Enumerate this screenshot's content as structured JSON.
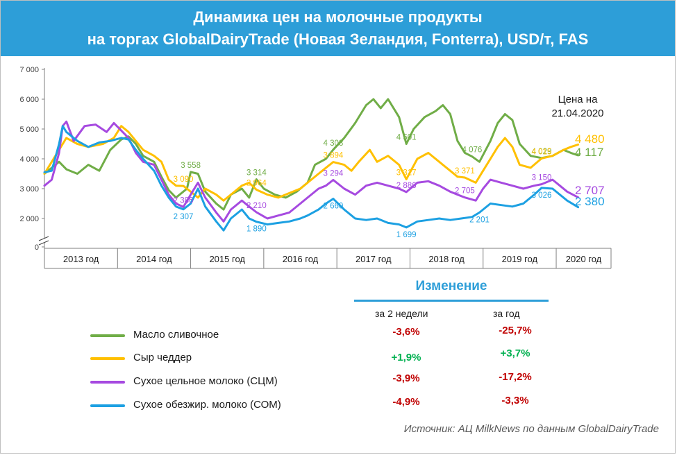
{
  "header": {
    "title_line1": "Динамика цен на молочные продукты",
    "title_line2": "на торгах GlobalDairyTrade (Новая Зеландия, Fonterra), USD/т, FAS"
  },
  "chart_data": {
    "type": "line",
    "ylim": [
      0,
      7000
    ],
    "yticks": [
      "0",
      "2 000",
      "3 000",
      "4 000",
      "5 000",
      "6 000",
      "7 000"
    ],
    "ytick_values": [
      0,
      2000,
      3000,
      4000,
      5000,
      6000,
      7000
    ],
    "axis_break": true,
    "x_range": [
      2013.0,
      2020.75
    ],
    "years": [
      "2013 год",
      "2014 год",
      "2015 год",
      "2016 год",
      "2017 год",
      "2018 год",
      "2019 год",
      "2020 год"
    ],
    "price_note": "Цена на\n21.04.2020",
    "series": [
      {
        "name": "Масло сливочное",
        "color": "#70ad47",
        "points": [
          [
            2013.0,
            3500
          ],
          [
            2013.1,
            3700
          ],
          [
            2013.2,
            3900
          ],
          [
            2013.3,
            3650
          ],
          [
            2013.45,
            3500
          ],
          [
            2013.6,
            3800
          ],
          [
            2013.75,
            3600
          ],
          [
            2013.9,
            4300
          ],
          [
            2014.05,
            4650
          ],
          [
            2014.15,
            4750
          ],
          [
            2014.25,
            4500
          ],
          [
            2014.35,
            4100
          ],
          [
            2014.5,
            3900
          ],
          [
            2014.6,
            3400
          ],
          [
            2014.7,
            2950
          ],
          [
            2014.8,
            2700
          ],
          [
            2014.95,
            3000
          ],
          [
            2015.0,
            3558
          ],
          [
            2015.1,
            3500
          ],
          [
            2015.2,
            2900
          ],
          [
            2015.35,
            2500
          ],
          [
            2015.45,
            2300
          ],
          [
            2015.55,
            2800
          ],
          [
            2015.7,
            3000
          ],
          [
            2015.8,
            2700
          ],
          [
            2015.9,
            3314
          ],
          [
            2016.0,
            3000
          ],
          [
            2016.15,
            2800
          ],
          [
            2016.3,
            2700
          ],
          [
            2016.45,
            2900
          ],
          [
            2016.6,
            3200
          ],
          [
            2016.7,
            3800
          ],
          [
            2016.85,
            4000
          ],
          [
            2016.95,
            4308
          ],
          [
            2017.1,
            4700
          ],
          [
            2017.25,
            5200
          ],
          [
            2017.4,
            5800
          ],
          [
            2017.5,
            6000
          ],
          [
            2017.6,
            5700
          ],
          [
            2017.7,
            6000
          ],
          [
            2017.85,
            5400
          ],
          [
            2017.95,
            4501
          ],
          [
            2018.05,
            5000
          ],
          [
            2018.2,
            5400
          ],
          [
            2018.35,
            5600
          ],
          [
            2018.45,
            5800
          ],
          [
            2018.55,
            5500
          ],
          [
            2018.65,
            4600
          ],
          [
            2018.75,
            4200
          ],
          [
            2018.85,
            4076
          ],
          [
            2018.95,
            3900
          ],
          [
            2019.1,
            4600
          ],
          [
            2019.2,
            5200
          ],
          [
            2019.3,
            5500
          ],
          [
            2019.4,
            5300
          ],
          [
            2019.5,
            4500
          ],
          [
            2019.65,
            4100
          ],
          [
            2019.8,
            4029
          ],
          [
            2019.95,
            4100
          ],
          [
            2020.1,
            4300
          ],
          [
            2020.2,
            4200
          ],
          [
            2020.3,
            4117
          ]
        ],
        "labels": [
          [
            "3 558",
            2015.0,
            3558
          ],
          [
            "3 314",
            2015.9,
            3314
          ],
          [
            "4 308",
            2016.95,
            4308
          ],
          [
            "4 501",
            2017.95,
            4501
          ],
          [
            "4 076",
            2018.85,
            4076
          ],
          [
            "4 029",
            2019.8,
            4029
          ]
        ],
        "end_value": "4 117",
        "change_2w": "-3,6%",
        "change_yr": "-25,7%"
      },
      {
        "name": "Сыр чеддер",
        "color": "#ffc000",
        "points": [
          [
            2013.0,
            3500
          ],
          [
            2013.15,
            4100
          ],
          [
            2013.3,
            4700
          ],
          [
            2013.45,
            4500
          ],
          [
            2013.6,
            4400
          ],
          [
            2013.8,
            4500
          ],
          [
            2013.95,
            4700
          ],
          [
            2014.05,
            5100
          ],
          [
            2014.15,
            4900
          ],
          [
            2014.25,
            4600
          ],
          [
            2014.35,
            4300
          ],
          [
            2014.5,
            4100
          ],
          [
            2014.6,
            3900
          ],
          [
            2014.7,
            3300
          ],
          [
            2014.8,
            3100
          ],
          [
            2014.9,
            3090
          ],
          [
            2015.0,
            2900
          ],
          [
            2015.1,
            2700
          ],
          [
            2015.2,
            3000
          ],
          [
            2015.35,
            2800
          ],
          [
            2015.45,
            2600
          ],
          [
            2015.55,
            2800
          ],
          [
            2015.7,
            3100
          ],
          [
            2015.8,
            3200
          ],
          [
            2015.9,
            2964
          ],
          [
            2016.05,
            2800
          ],
          [
            2016.2,
            2700
          ],
          [
            2016.35,
            2850
          ],
          [
            2016.5,
            3000
          ],
          [
            2016.6,
            3200
          ],
          [
            2016.75,
            3500
          ],
          [
            2016.85,
            3700
          ],
          [
            2016.95,
            3894
          ],
          [
            2017.1,
            3800
          ],
          [
            2017.2,
            3600
          ],
          [
            2017.3,
            3900
          ],
          [
            2017.45,
            4300
          ],
          [
            2017.55,
            3900
          ],
          [
            2017.7,
            4100
          ],
          [
            2017.85,
            3800
          ],
          [
            2017.95,
            3317
          ],
          [
            2018.1,
            4000
          ],
          [
            2018.25,
            4200
          ],
          [
            2018.4,
            3900
          ],
          [
            2018.55,
            3600
          ],
          [
            2018.65,
            3400
          ],
          [
            2018.75,
            3371
          ],
          [
            2018.9,
            3200
          ],
          [
            2019.0,
            3600
          ],
          [
            2019.1,
            4000
          ],
          [
            2019.2,
            4400
          ],
          [
            2019.3,
            4700
          ],
          [
            2019.4,
            4400
          ],
          [
            2019.5,
            3800
          ],
          [
            2019.65,
            3700
          ],
          [
            2019.8,
            4015
          ],
          [
            2019.95,
            4100
          ],
          [
            2020.1,
            4300
          ],
          [
            2020.2,
            4400
          ],
          [
            2020.3,
            4480
          ]
        ],
        "labels": [
          [
            "3 090",
            2014.9,
            3090
          ],
          [
            "2 964",
            2015.9,
            2964
          ],
          [
            "3 894",
            2016.95,
            3894
          ],
          [
            "3 317",
            2017.95,
            3317
          ],
          [
            "3 371",
            2018.75,
            3371
          ],
          [
            "4 015",
            2019.8,
            4015
          ]
        ],
        "end_value": "4 480",
        "change_2w": "+1,9%",
        "change_yr": "+3,7%"
      },
      {
        "name": "Сухое цельное молоко (СЦМ)",
        "color": "#a64ae0",
        "points": [
          [
            2013.0,
            3100
          ],
          [
            2013.1,
            3300
          ],
          [
            2013.2,
            4200
          ],
          [
            2013.25,
            5100
          ],
          [
            2013.3,
            5250
          ],
          [
            2013.4,
            4600
          ],
          [
            2013.55,
            5100
          ],
          [
            2013.7,
            5150
          ],
          [
            2013.85,
            4900
          ],
          [
            2013.95,
            5200
          ],
          [
            2014.05,
            4950
          ],
          [
            2014.15,
            4700
          ],
          [
            2014.25,
            4200
          ],
          [
            2014.35,
            3900
          ],
          [
            2014.5,
            3800
          ],
          [
            2014.6,
            3300
          ],
          [
            2014.7,
            2800
          ],
          [
            2014.8,
            2500
          ],
          [
            2014.9,
            2386
          ],
          [
            2015.0,
            2800
          ],
          [
            2015.1,
            3200
          ],
          [
            2015.2,
            2700
          ],
          [
            2015.35,
            2200
          ],
          [
            2015.45,
            1900
          ],
          [
            2015.55,
            2300
          ],
          [
            2015.7,
            2600
          ],
          [
            2015.8,
            2400
          ],
          [
            2015.9,
            2210
          ],
          [
            2016.05,
            2000
          ],
          [
            2016.2,
            2100
          ],
          [
            2016.35,
            2200
          ],
          [
            2016.5,
            2500
          ],
          [
            2016.6,
            2700
          ],
          [
            2016.75,
            3000
          ],
          [
            2016.85,
            3100
          ],
          [
            2016.95,
            3294
          ],
          [
            2017.1,
            3000
          ],
          [
            2017.25,
            2800
          ],
          [
            2017.4,
            3100
          ],
          [
            2017.55,
            3200
          ],
          [
            2017.7,
            3100
          ],
          [
            2017.85,
            3000
          ],
          [
            2017.95,
            2886
          ],
          [
            2018.1,
            3200
          ],
          [
            2018.25,
            3250
          ],
          [
            2018.4,
            3100
          ],
          [
            2018.55,
            2900
          ],
          [
            2018.65,
            2800
          ],
          [
            2018.75,
            2705
          ],
          [
            2018.9,
            2600
          ],
          [
            2019.0,
            3000
          ],
          [
            2019.1,
            3300
          ],
          [
            2019.25,
            3200
          ],
          [
            2019.4,
            3100
          ],
          [
            2019.55,
            3000
          ],
          [
            2019.7,
            3100
          ],
          [
            2019.8,
            3150
          ],
          [
            2019.95,
            3300
          ],
          [
            2020.05,
            3100
          ],
          [
            2020.15,
            2900
          ],
          [
            2020.3,
            2707
          ]
        ],
        "labels": [
          [
            "2 386",
            2014.9,
            2386
          ],
          [
            "2 210",
            2015.9,
            2210
          ],
          [
            "3 294",
            2016.95,
            3294
          ],
          [
            "2 886",
            2017.95,
            2886
          ],
          [
            "2 705",
            2018.75,
            2705
          ],
          [
            "3 150",
            2019.8,
            3150
          ]
        ],
        "end_value": "2 707",
        "change_2w": "-3,9%",
        "change_yr": "-17,2%"
      },
      {
        "name": "Сухое обезжир. молоко (СОМ)",
        "color": "#1ca0e2",
        "points": [
          [
            2013.0,
            3550
          ],
          [
            2013.1,
            3600
          ],
          [
            2013.2,
            4500
          ],
          [
            2013.25,
            5100
          ],
          [
            2013.3,
            4900
          ],
          [
            2013.45,
            4600
          ],
          [
            2013.6,
            4400
          ],
          [
            2013.75,
            4550
          ],
          [
            2013.9,
            4600
          ],
          [
            2014.05,
            4700
          ],
          [
            2014.15,
            4650
          ],
          [
            2014.25,
            4300
          ],
          [
            2014.35,
            4000
          ],
          [
            2014.5,
            3600
          ],
          [
            2014.6,
            3100
          ],
          [
            2014.7,
            2700
          ],
          [
            2014.8,
            2400
          ],
          [
            2014.9,
            2307
          ],
          [
            2015.0,
            2500
          ],
          [
            2015.1,
            3000
          ],
          [
            2015.2,
            2400
          ],
          [
            2015.35,
            1900
          ],
          [
            2015.45,
            1600
          ],
          [
            2015.55,
            2000
          ],
          [
            2015.7,
            2300
          ],
          [
            2015.8,
            2000
          ],
          [
            2015.9,
            1890
          ],
          [
            2016.05,
            1800
          ],
          [
            2016.2,
            1850
          ],
          [
            2016.35,
            1900
          ],
          [
            2016.5,
            2000
          ],
          [
            2016.6,
            2100
          ],
          [
            2016.75,
            2300
          ],
          [
            2016.85,
            2500
          ],
          [
            2016.95,
            2660
          ],
          [
            2017.1,
            2300
          ],
          [
            2017.25,
            2000
          ],
          [
            2017.4,
            1950
          ],
          [
            2017.55,
            2000
          ],
          [
            2017.7,
            1850
          ],
          [
            2017.85,
            1800
          ],
          [
            2017.95,
            1699
          ],
          [
            2018.1,
            1900
          ],
          [
            2018.25,
            1950
          ],
          [
            2018.4,
            2000
          ],
          [
            2018.55,
            1950
          ],
          [
            2018.7,
            2000
          ],
          [
            2018.85,
            2050
          ],
          [
            2018.95,
            2201
          ],
          [
            2019.1,
            2500
          ],
          [
            2019.25,
            2450
          ],
          [
            2019.4,
            2400
          ],
          [
            2019.55,
            2500
          ],
          [
            2019.7,
            2800
          ],
          [
            2019.8,
            3026
          ],
          [
            2019.95,
            3000
          ],
          [
            2020.05,
            2800
          ],
          [
            2020.15,
            2600
          ],
          [
            2020.3,
            2380
          ]
        ],
        "labels": [
          [
            "2 307",
            2014.9,
            2307
          ],
          [
            "1 890",
            2015.9,
            1890
          ],
          [
            "2 660",
            2016.95,
            2660
          ],
          [
            "1 699",
            2017.95,
            1699
          ],
          [
            "2 201",
            2018.95,
            2201
          ],
          [
            "3 026",
            2019.8,
            3026
          ]
        ],
        "end_value": "2 380",
        "change_2w": "-4,9%",
        "change_yr": "-3,3%"
      }
    ]
  },
  "change": {
    "title": "Изменение",
    "col_2w": "за 2 недели",
    "col_yr": "за год",
    "neg_color": "#c00000",
    "pos_color": "#00b050"
  },
  "source": "Источник: АЦ MilkNews по данным GlobalDairyTrade"
}
